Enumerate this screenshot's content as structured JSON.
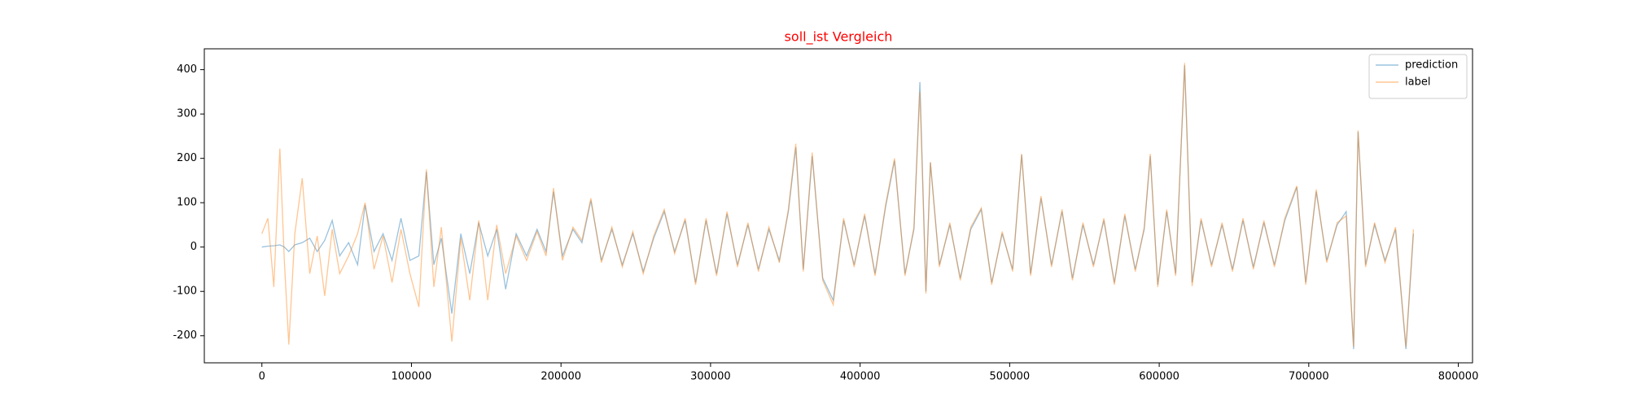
{
  "chart_data": {
    "type": "line",
    "title": "soll_ist Vergleich",
    "title_color": "#ff0000",
    "x": [
      0,
      4000,
      8000,
      12000,
      15000,
      18000,
      22000,
      27000,
      32000,
      37000,
      42000,
      47000,
      52000,
      58000,
      64000,
      69000,
      75000,
      81000,
      87000,
      93000,
      99000,
      105000,
      110000,
      115000,
      120000,
      127000,
      133000,
      139000,
      145000,
      151000,
      157000,
      163000,
      170000,
      177000,
      184000,
      190000,
      195000,
      201000,
      208000,
      214000,
      220000,
      227000,
      234000,
      241000,
      248000,
      255000,
      262000,
      269000,
      276000,
      283000,
      290000,
      297000,
      304000,
      311000,
      318000,
      325000,
      332000,
      339000,
      346000,
      352000,
      357000,
      362000,
      368000,
      375000,
      382000,
      389000,
      396000,
      403000,
      410000,
      417000,
      423000,
      430000,
      436000,
      440000,
      444000,
      447000,
      453000,
      460000,
      467000,
      474000,
      481000,
      488000,
      495000,
      502000,
      508000,
      514000,
      521000,
      528000,
      535000,
      542000,
      549000,
      556000,
      563000,
      570000,
      577000,
      584000,
      590000,
      594000,
      599000,
      605000,
      611000,
      617000,
      622000,
      628000,
      635000,
      642000,
      649000,
      656000,
      663000,
      670000,
      677000,
      684000,
      692000,
      698000,
      705000,
      712000,
      719000,
      725000,
      730000,
      733000,
      738000,
      744000,
      751000,
      758000,
      765000,
      770000
    ],
    "series": [
      {
        "name": "prediction",
        "color": "#1f77b4",
        "values": [
          0,
          2,
          3,
          5,
          0,
          -10,
          5,
          10,
          20,
          -10,
          15,
          60,
          -20,
          10,
          -40,
          95,
          -10,
          30,
          -30,
          65,
          -30,
          -20,
          170,
          -40,
          20,
          -150,
          30,
          -60,
          55,
          -20,
          40,
          -95,
          30,
          -20,
          40,
          -10,
          125,
          -20,
          40,
          10,
          105,
          -30,
          40,
          -40,
          30,
          -55,
          20,
          80,
          -10,
          60,
          -80,
          60,
          -60,
          75,
          -40,
          50,
          -50,
          40,
          -30,
          80,
          225,
          -50,
          205,
          -70,
          -120,
          60,
          -40,
          70,
          -60,
          90,
          195,
          -60,
          40,
          372,
          -100,
          190,
          -40,
          50,
          -70,
          40,
          85,
          -80,
          30,
          -50,
          208,
          -60,
          110,
          -40,
          80,
          -70,
          50,
          -40,
          60,
          -80,
          70,
          -50,
          40,
          205,
          -85,
          80,
          -60,
          410,
          -80,
          60,
          -40,
          50,
          -50,
          60,
          -45,
          55,
          -40,
          60,
          135,
          -80,
          125,
          -30,
          50,
          80,
          -230,
          260,
          -40,
          50,
          -30,
          40,
          -230,
          30
        ]
      },
      {
        "name": "label",
        "color": "#ff7f0e",
        "values": [
          30,
          65,
          -90,
          222,
          -30,
          -220,
          30,
          155,
          -60,
          25,
          -110,
          40,
          -60,
          -20,
          30,
          100,
          -50,
          25,
          -80,
          40,
          -60,
          -135,
          175,
          -90,
          45,
          -213,
          20,
          -120,
          60,
          -120,
          50,
          -60,
          25,
          -30,
          35,
          -20,
          133,
          -30,
          45,
          15,
          110,
          -35,
          45,
          -45,
          35,
          -60,
          25,
          85,
          -15,
          65,
          -85,
          65,
          -65,
          80,
          -45,
          55,
          -55,
          45,
          -35,
          85,
          233,
          -55,
          213,
          -75,
          -130,
          65,
          -45,
          75,
          -65,
          95,
          200,
          -65,
          45,
          350,
          -105,
          192,
          -45,
          55,
          -75,
          45,
          88,
          -85,
          35,
          -55,
          210,
          -65,
          115,
          -45,
          85,
          -75,
          55,
          -45,
          65,
          -85,
          75,
          -55,
          45,
          210,
          -90,
          85,
          -65,
          415,
          -88,
          65,
          -45,
          55,
          -55,
          65,
          -50,
          60,
          -45,
          65,
          138,
          -85,
          130,
          -35,
          55,
          70,
          -225,
          263,
          -45,
          55,
          -35,
          45,
          -225,
          40
        ]
      }
    ],
    "xlim": [
      -38500,
      809500
    ],
    "xticks": [
      0,
      100000,
      200000,
      300000,
      400000,
      500000,
      600000,
      700000,
      800000
    ],
    "ylim": [
      -261,
      447
    ],
    "yticks": [
      -200,
      -100,
      0,
      100,
      200,
      300,
      400
    ],
    "legend": "upper right"
  }
}
